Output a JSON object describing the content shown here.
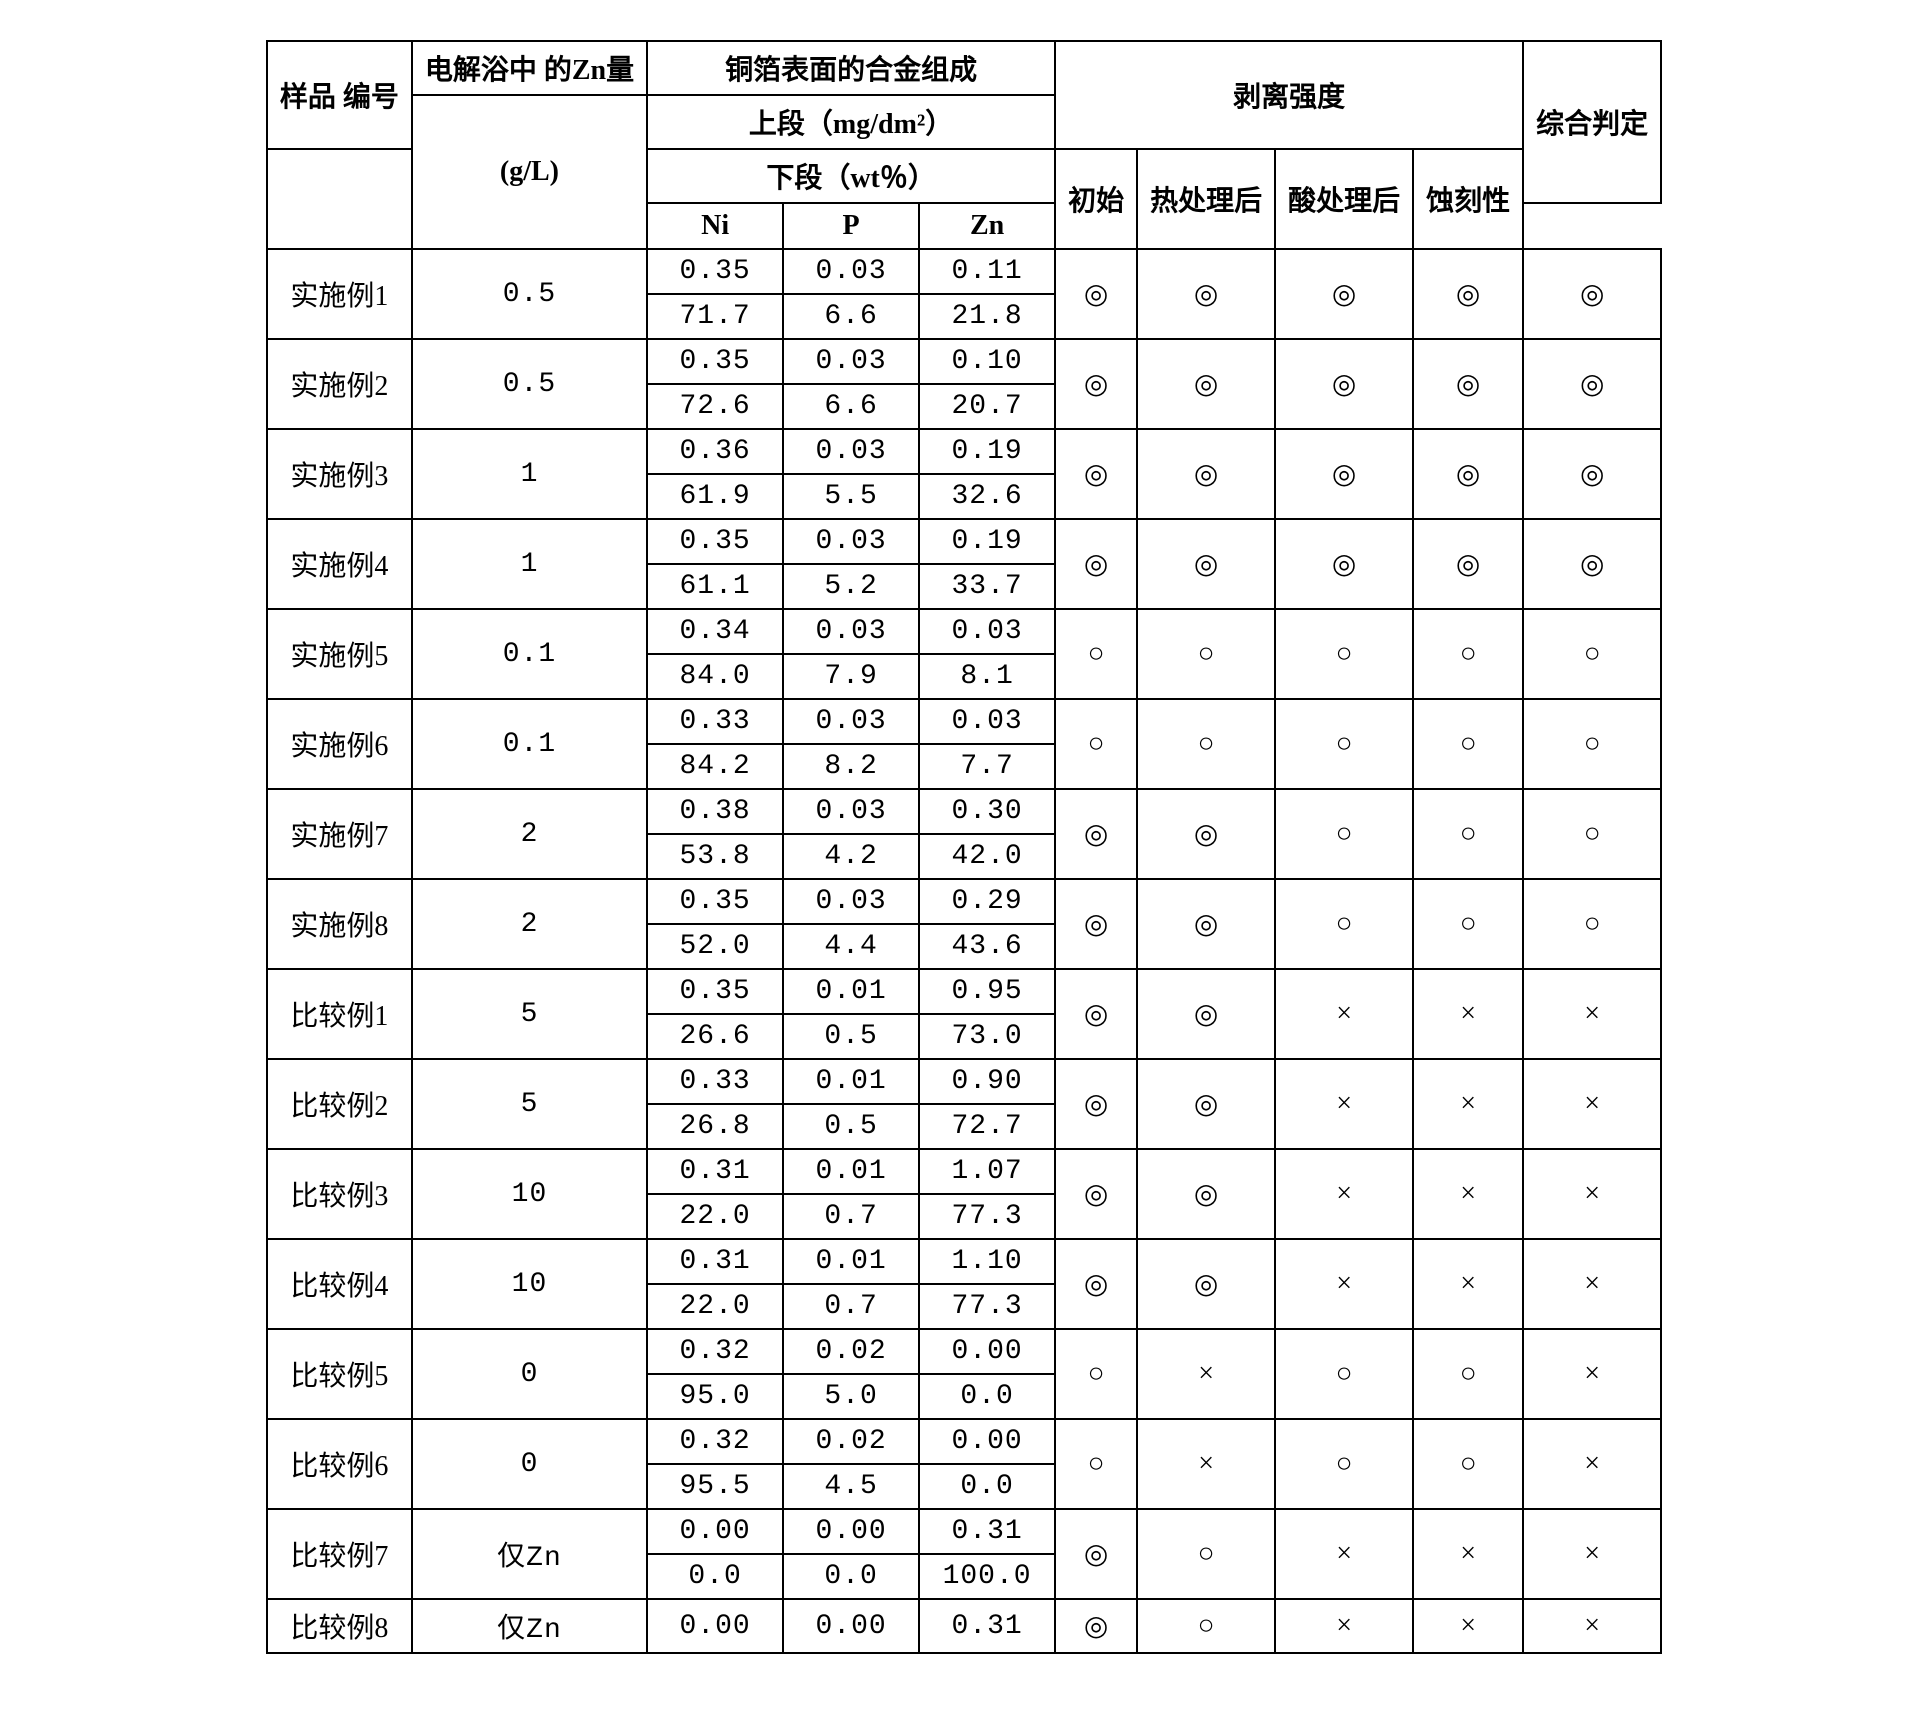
{
  "headers": {
    "sample": "样品\n编号",
    "zn_bath": "电解浴中\n的Zn量",
    "zn_unit": "(g/L)",
    "alloy_title": "铜箔表面的合金组成",
    "upper": "上段（mg/dm²）",
    "lower": "下段（wt％）",
    "ni": "Ni",
    "p": "P",
    "zn": "Zn",
    "peel": "剥离强度",
    "initial": "初始",
    "heat": "热处理后",
    "acid": "酸处理后",
    "etch": "蚀刻性",
    "overall": "综合判定"
  },
  "rows": [
    {
      "label": "实施例1",
      "zn": "0.5",
      "up": [
        "0.35",
        "0.03",
        "0.11"
      ],
      "lo": [
        "71.7",
        "6.6",
        "21.8"
      ],
      "r": [
        "◎",
        "◎",
        "◎",
        "◎",
        "◎"
      ]
    },
    {
      "label": "实施例2",
      "zn": "0.5",
      "up": [
        "0.35",
        "0.03",
        "0.10"
      ],
      "lo": [
        "72.6",
        "6.6",
        "20.7"
      ],
      "r": [
        "◎",
        "◎",
        "◎",
        "◎",
        "◎"
      ]
    },
    {
      "label": "实施例3",
      "zn": "1",
      "up": [
        "0.36",
        "0.03",
        "0.19"
      ],
      "lo": [
        "61.9",
        "5.5",
        "32.6"
      ],
      "r": [
        "◎",
        "◎",
        "◎",
        "◎",
        "◎"
      ]
    },
    {
      "label": "实施例4",
      "zn": "1",
      "up": [
        "0.35",
        "0.03",
        "0.19"
      ],
      "lo": [
        "61.1",
        "5.2",
        "33.7"
      ],
      "r": [
        "◎",
        "◎",
        "◎",
        "◎",
        "◎"
      ]
    },
    {
      "label": "实施例5",
      "zn": "0.1",
      "up": [
        "0.34",
        "0.03",
        "0.03"
      ],
      "lo": [
        "84.0",
        "7.9",
        "8.1"
      ],
      "r": [
        "○",
        "○",
        "○",
        "○",
        "○"
      ]
    },
    {
      "label": "实施例6",
      "zn": "0.1",
      "up": [
        "0.33",
        "0.03",
        "0.03"
      ],
      "lo": [
        "84.2",
        "8.2",
        "7.7"
      ],
      "r": [
        "○",
        "○",
        "○",
        "○",
        "○"
      ]
    },
    {
      "label": "实施例7",
      "zn": "2",
      "up": [
        "0.38",
        "0.03",
        "0.30"
      ],
      "lo": [
        "53.8",
        "4.2",
        "42.0"
      ],
      "r": [
        "◎",
        "◎",
        "○",
        "○",
        "○"
      ]
    },
    {
      "label": "实施例8",
      "zn": "2",
      "up": [
        "0.35",
        "0.03",
        "0.29"
      ],
      "lo": [
        "52.0",
        "4.4",
        "43.6"
      ],
      "r": [
        "◎",
        "◎",
        "○",
        "○",
        "○"
      ]
    },
    {
      "label": "比较例1",
      "zn": "5",
      "up": [
        "0.35",
        "0.01",
        "0.95"
      ],
      "lo": [
        "26.6",
        "0.5",
        "73.0"
      ],
      "r": [
        "◎",
        "◎",
        "×",
        "×",
        "×"
      ]
    },
    {
      "label": "比较例2",
      "zn": "5",
      "up": [
        "0.33",
        "0.01",
        "0.90"
      ],
      "lo": [
        "26.8",
        "0.5",
        "72.7"
      ],
      "r": [
        "◎",
        "◎",
        "×",
        "×",
        "×"
      ]
    },
    {
      "label": "比较例3",
      "zn": "10",
      "up": [
        "0.31",
        "0.01",
        "1.07"
      ],
      "lo": [
        "22.0",
        "0.7",
        "77.3"
      ],
      "r": [
        "◎",
        "◎",
        "×",
        "×",
        "×"
      ]
    },
    {
      "label": "比较例4",
      "zn": "10",
      "up": [
        "0.31",
        "0.01",
        "1.10"
      ],
      "lo": [
        "22.0",
        "0.7",
        "77.3"
      ],
      "r": [
        "◎",
        "◎",
        "×",
        "×",
        "×"
      ]
    },
    {
      "label": "比较例5",
      "zn": "0",
      "up": [
        "0.32",
        "0.02",
        "0.00"
      ],
      "lo": [
        "95.0",
        "5.0",
        "0.0"
      ],
      "r": [
        "○",
        "×",
        "○",
        "○",
        "×"
      ]
    },
    {
      "label": "比较例6",
      "zn": "0",
      "up": [
        "0.32",
        "0.02",
        "0.00"
      ],
      "lo": [
        "95.5",
        "4.5",
        "0.0"
      ],
      "r": [
        "○",
        "×",
        "○",
        "○",
        "×"
      ]
    },
    {
      "label": "比较例7",
      "zn": "仅Zn",
      "up": [
        "0.00",
        "0.00",
        "0.31"
      ],
      "lo": [
        "0.0",
        "0.0",
        "100.0"
      ],
      "r": [
        "◎",
        "○",
        "×",
        "×",
        "×"
      ]
    }
  ],
  "lastRow": {
    "label": "比较例8",
    "zn": "仅Zn",
    "up": [
      "0.00",
      "0.00",
      "0.31"
    ],
    "r": [
      "◎",
      "○",
      "×",
      "×",
      "×"
    ]
  }
}
